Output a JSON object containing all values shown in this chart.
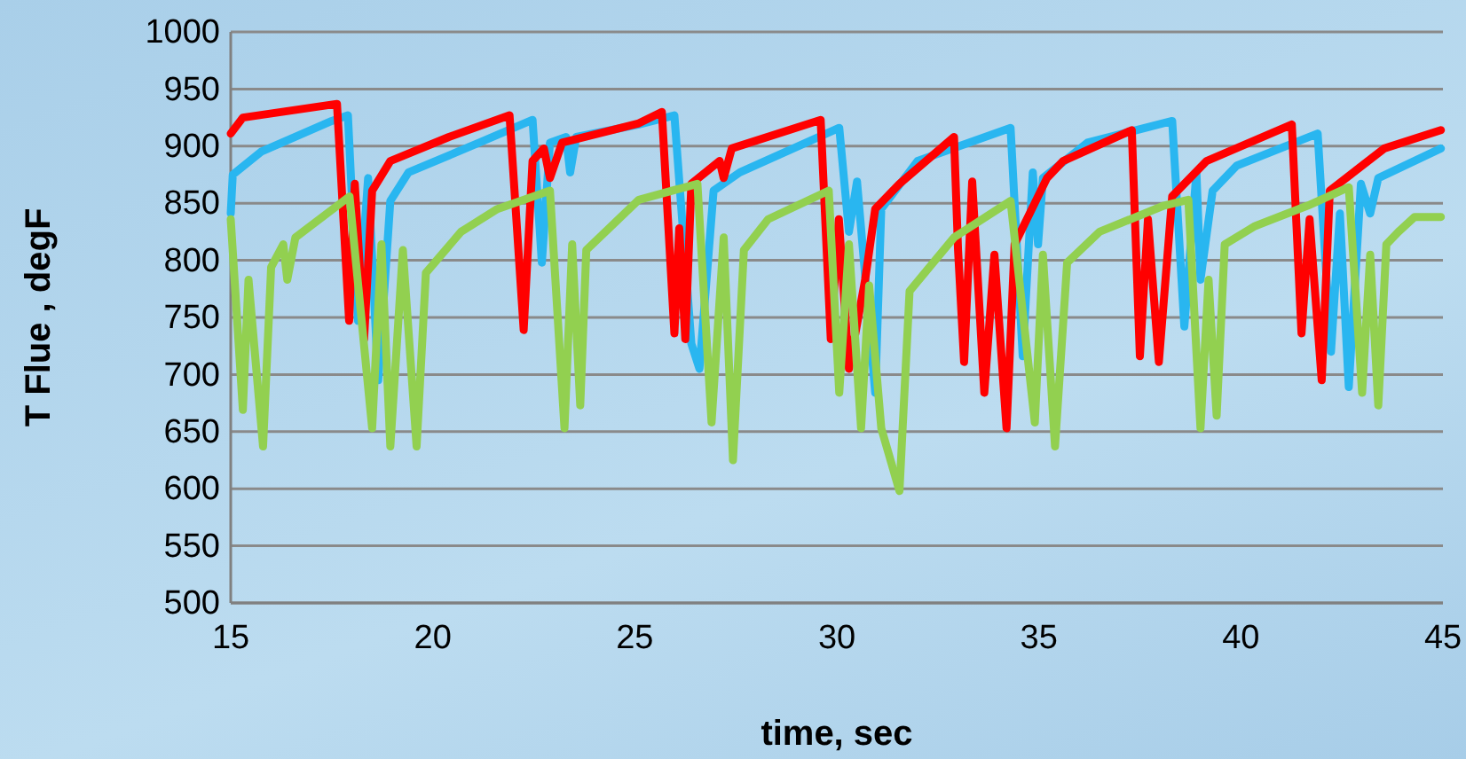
{
  "chart_data": {
    "type": "line",
    "xlabel": "time, sec",
    "ylabel": "T Flue , degF",
    "xlim": [
      15,
      45
    ],
    "xticks": [
      15,
      20,
      25,
      30,
      35,
      40,
      45
    ],
    "ylim": [
      500,
      1000
    ],
    "yticks": [
      500,
      550,
      600,
      650,
      700,
      750,
      800,
      850,
      900,
      950,
      1000
    ],
    "grid": "y",
    "marker": "none",
    "line_style": "solid",
    "series": [
      {
        "color": "#29b6f0",
        "x": [
          15,
          15.05,
          15.75,
          17.5,
          17.9,
          18.15,
          18.4,
          18.65,
          18.95,
          19.4,
          21.15,
          22.47,
          22.7,
          22.9,
          23.3,
          23.4,
          23.55,
          25.1,
          25.98,
          26.4,
          26.6,
          26.95,
          27.6,
          30.06,
          30.3,
          30.5,
          30.95,
          31.1,
          32,
          34.3,
          34.6,
          34.85,
          34.98,
          35.1,
          36.2,
          38.3,
          38.6,
          38.9,
          39.0,
          39.3,
          39.9,
          41.9,
          42.23,
          42.45,
          42.67,
          42.97,
          43.2,
          43.4,
          44.95
        ],
        "values": [
          841,
          875,
          895,
          922,
          927,
          747,
          872,
          695,
          852,
          877,
          903,
          923,
          798,
          903,
          908,
          877,
          908,
          919,
          927,
          727,
          705,
          861,
          877,
          916,
          825,
          869,
          684,
          845,
          887,
          916,
          716,
          877,
          814,
          872,
          903,
          922,
          742,
          877,
          783,
          861,
          883,
          911,
          720,
          841,
          689,
          867,
          841,
          872,
          898
        ]
      },
      {
        "color": "#ff0000",
        "x": [
          15,
          15.3,
          17.63,
          17.93,
          18.07,
          18.3,
          18.5,
          18.95,
          20.4,
          21.9,
          22.25,
          22.47,
          22.75,
          22.9,
          23.2,
          25.1,
          25.67,
          25.98,
          26.1,
          26.25,
          26.4,
          27.1,
          27.2,
          27.4,
          29.6,
          29.85,
          30.05,
          30.3,
          30.7,
          30.95,
          31.55,
          32.9,
          33.0,
          33.15,
          33.35,
          33.65,
          33.9,
          34.2,
          34.4,
          35.2,
          35.6,
          37.3,
          37.5,
          37.7,
          37.97,
          38.3,
          39.15,
          41.26,
          41.5,
          41.7,
          42.0,
          42.2,
          43.55,
          44.95
        ],
        "values": [
          911,
          925,
          937,
          747,
          867,
          731,
          861,
          887,
          908,
          927,
          739,
          887,
          898,
          872,
          903,
          920,
          930,
          736,
          828,
          731,
          867,
          887,
          872,
          898,
          923,
          731,
          836,
          705,
          783,
          845,
          867,
          908,
          809,
          711,
          869,
          684,
          805,
          653,
          814,
          872,
          887,
          914,
          716,
          836,
          711,
          856,
          887,
          919,
          736,
          836,
          695,
          861,
          898,
          914
        ]
      },
      {
        "color": "#92d050",
        "x": [
          15,
          15.3,
          15.44,
          15.8,
          16.0,
          16.3,
          16.4,
          16.6,
          17.94,
          18.5,
          18.73,
          18.95,
          19.26,
          19.6,
          19.83,
          20.7,
          21.6,
          22.9,
          23.26,
          23.45,
          23.65,
          23.8,
          25.1,
          26.55,
          26.9,
          27.2,
          27.43,
          27.7,
          28.3,
          29.8,
          30.06,
          30.3,
          30.6,
          30.8,
          31.1,
          31.55,
          31.8,
          32.9,
          34.3,
          34.9,
          35.1,
          35.4,
          35.7,
          36.5,
          38.1,
          38.7,
          39.0,
          39.2,
          39.4,
          39.6,
          40.35,
          41.66,
          42.67,
          43.0,
          43.2,
          43.4,
          43.6,
          43.9,
          44.3,
          44.95
        ],
        "values": [
          836,
          669,
          783,
          637,
          794,
          814,
          783,
          820,
          856,
          653,
          814,
          637,
          809,
          637,
          789,
          825,
          845,
          861,
          653,
          814,
          673,
          809,
          853,
          867,
          658,
          820,
          625,
          809,
          836,
          861,
          684,
          814,
          653,
          778,
          653,
          598,
          773,
          820,
          852,
          658,
          805,
          637,
          798,
          825,
          848,
          853,
          653,
          783,
          664,
          814,
          830,
          848,
          864,
          684,
          805,
          673,
          814,
          825,
          838,
          838
        ]
      }
    ]
  }
}
